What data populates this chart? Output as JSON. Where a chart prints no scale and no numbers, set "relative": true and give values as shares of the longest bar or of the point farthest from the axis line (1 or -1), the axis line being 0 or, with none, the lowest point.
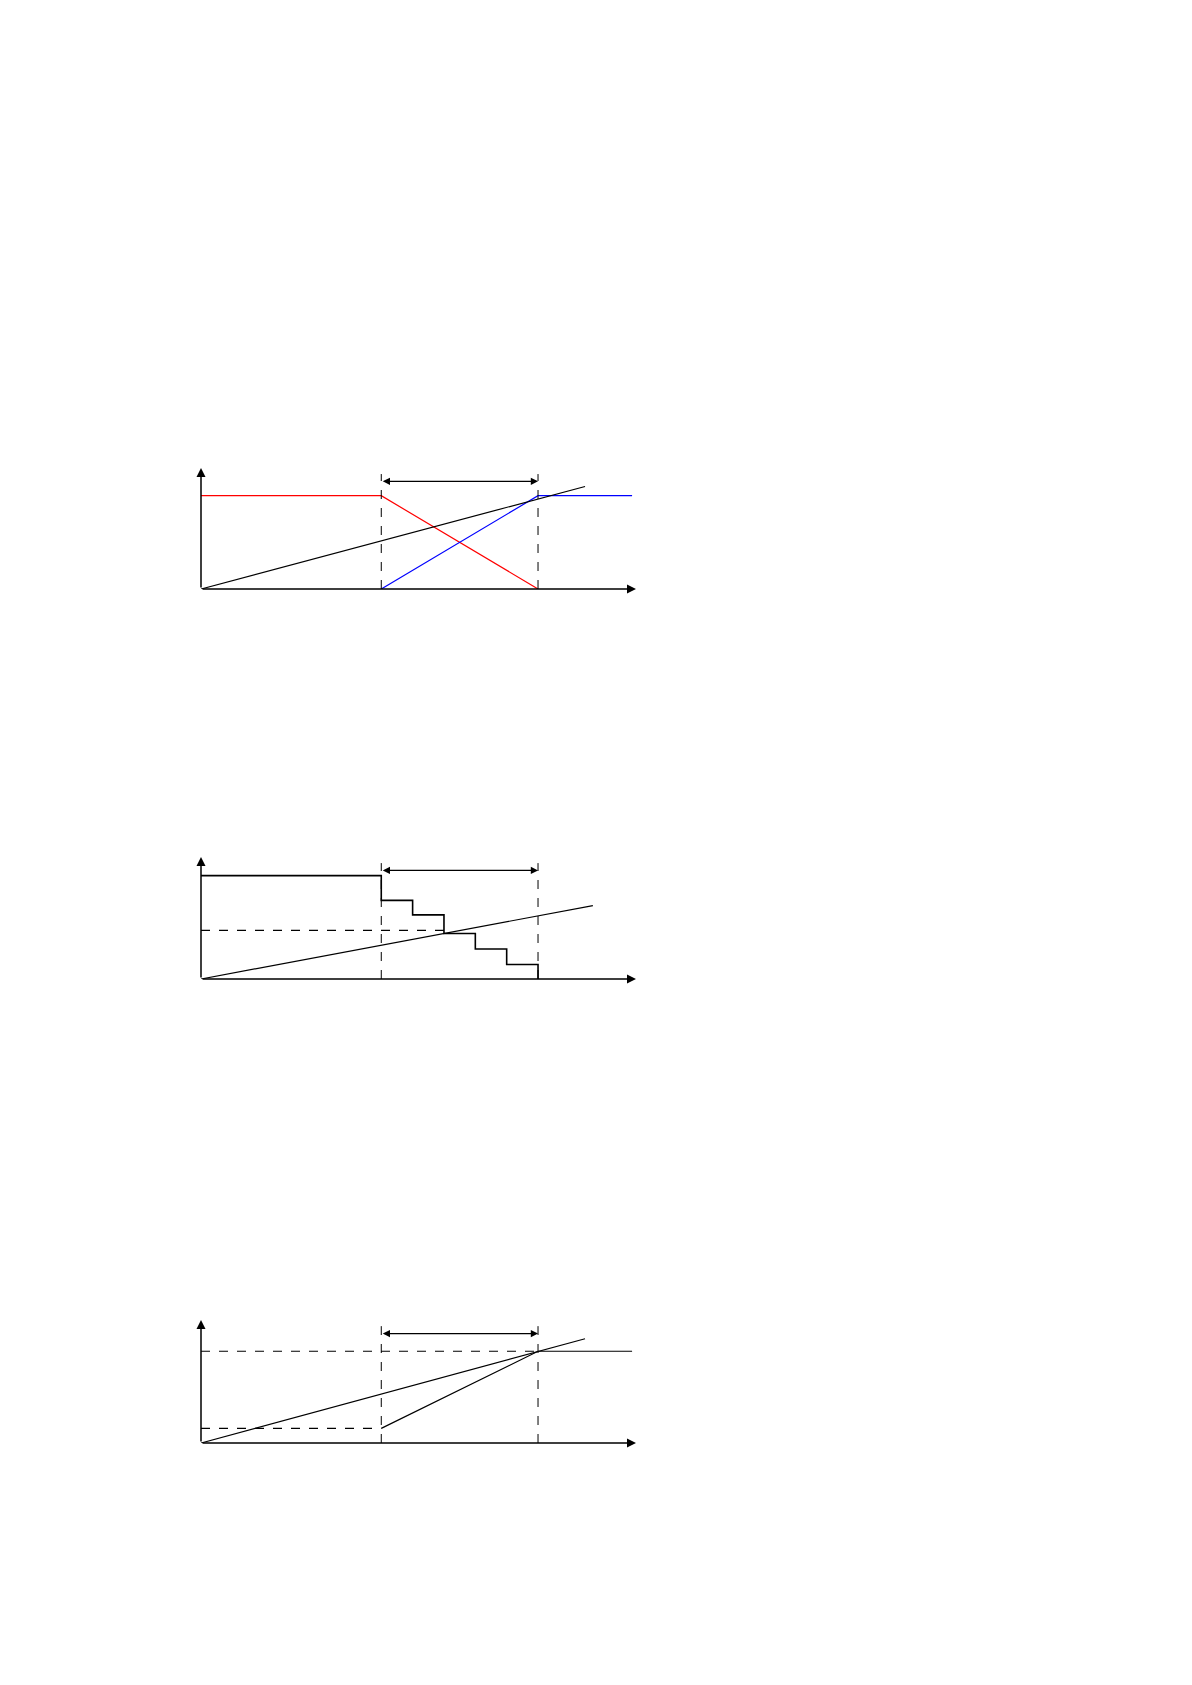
{
  "chart_data": [
    {
      "type": "line",
      "relative": true,
      "categories": [
        null,
        null,
        null,
        null,
        null,
        null,
        null,
        null,
        null,
        null,
        null,
        null,
        null,
        null,
        null,
        null,
        null,
        null,
        null,
        null,
        null,
        null,
        null,
        null,
        null,
        null,
        null,
        null,
        null,
        null,
        null,
        null,
        null,
        null,
        null,
        null,
        null,
        null,
        null,
        null,
        null,
        null,
        null,
        null,
        null,
        null,
        null,
        null,
        null,
        null,
        null,
        null,
        null,
        null,
        null,
        null
      ],
      "series": [
        {
          "color": "#ff0000",
          "values": [
            0.91,
            null,
            null,
            null,
            null,
            null,
            null,
            null,
            null,
            null,
            null,
            null,
            null,
            null,
            null,
            null,
            null,
            null,
            null,
            null,
            null,
            null,
            null,
            0.91,
            null,
            null,
            null,
            null,
            null,
            null,
            null,
            null,
            null,
            null,
            null,
            null,
            null,
            null,
            null,
            null,
            null,
            null,
            null,
            0,
            null,
            null,
            null,
            null,
            null,
            null,
            null,
            null,
            null,
            null,
            null,
            null
          ]
        },
        {
          "color": "#0000ff",
          "values": [
            null,
            null,
            null,
            null,
            null,
            null,
            null,
            null,
            null,
            null,
            null,
            null,
            null,
            null,
            null,
            null,
            null,
            null,
            null,
            null,
            null,
            null,
            null,
            0,
            null,
            null,
            null,
            null,
            null,
            null,
            null,
            null,
            null,
            null,
            null,
            null,
            null,
            null,
            null,
            null,
            null,
            null,
            null,
            0.91,
            null,
            null,
            null,
            null,
            null,
            null,
            null,
            null,
            null,
            null,
            null,
            0.91
          ]
        },
        {
          "color": "#000000",
          "values": [
            0,
            null,
            null,
            null,
            null,
            null,
            null,
            null,
            null,
            null,
            null,
            null,
            null,
            null,
            null,
            null,
            null,
            null,
            null,
            null,
            null,
            null,
            null,
            null,
            null,
            null,
            null,
            null,
            null,
            null,
            null,
            null,
            null,
            null,
            null,
            null,
            null,
            null,
            null,
            null,
            null,
            null,
            null,
            null,
            null,
            null,
            null,
            null,
            null,
            1.0,
            null,
            null,
            null,
            null,
            null,
            null
          ]
        }
      ]
    },
    {
      "type": "line",
      "relative": true,
      "categories": [
        null,
        null,
        null,
        null,
        null,
        null,
        null,
        null,
        null,
        null,
        null,
        null,
        null,
        null,
        null,
        null,
        null,
        null,
        null,
        null,
        null,
        null,
        null,
        null,
        null,
        null,
        null,
        null,
        null,
        null,
        null,
        null,
        null,
        null,
        null,
        null,
        null,
        null,
        null,
        null,
        null,
        null,
        null,
        null,
        null,
        null,
        null,
        null,
        null,
        null,
        null,
        null,
        null,
        null,
        null,
        null
      ],
      "series": [
        {
          "type": "step",
          "color": "#000000",
          "values": [
            1.0,
            null,
            null,
            null,
            null,
            null,
            null,
            null,
            null,
            null,
            null,
            null,
            null,
            null,
            null,
            null,
            null,
            null,
            null,
            null,
            null,
            null,
            null,
            0.76,
            null,
            null,
            null,
            0.62,
            null,
            null,
            null,
            0.44,
            null,
            null,
            null,
            0.29,
            null,
            null,
            null,
            0.14,
            null,
            null,
            null,
            0,
            null,
            null,
            null,
            null,
            null,
            null,
            null,
            null,
            null,
            null,
            null,
            null
          ]
        },
        {
          "color": "#000000",
          "values": [
            0,
            null,
            null,
            null,
            null,
            null,
            null,
            null,
            null,
            null,
            null,
            null,
            null,
            null,
            null,
            null,
            null,
            null,
            null,
            null,
            null,
            null,
            null,
            null,
            null,
            null,
            null,
            null,
            null,
            null,
            null,
            null,
            null,
            null,
            null,
            null,
            null,
            null,
            null,
            null,
            null,
            null,
            null,
            null,
            null,
            null,
            null,
            null,
            null,
            null,
            0.71,
            null,
            null,
            null,
            null,
            null
          ]
        },
        {
          "color": "#000000",
          "line_style": "dashed",
          "values": [
            0.47,
            null,
            null,
            null,
            null,
            null,
            null,
            null,
            null,
            null,
            null,
            null,
            null,
            null,
            null,
            null,
            null,
            null,
            null,
            null,
            null,
            null,
            null,
            null,
            null,
            null,
            null,
            null,
            null,
            null,
            null,
            0.47,
            null,
            null,
            null,
            null,
            null,
            null,
            null,
            null,
            null,
            null,
            null,
            null,
            null,
            null,
            null,
            null,
            null,
            null,
            null,
            null,
            null,
            null,
            null,
            null
          ]
        }
      ]
    },
    {
      "type": "line",
      "relative": true,
      "categories": [
        null,
        null,
        null,
        null,
        null,
        null,
        null,
        null,
        null,
        null,
        null,
        null,
        null,
        null,
        null,
        null,
        null,
        null,
        null,
        null,
        null,
        null,
        null,
        null,
        null,
        null,
        null,
        null,
        null,
        null,
        null,
        null,
        null,
        null,
        null,
        null,
        null,
        null,
        null,
        null,
        null,
        null,
        null,
        null,
        null,
        null,
        null,
        null,
        null,
        null,
        null,
        null,
        null,
        null,
        null,
        null
      ],
      "series": [
        {
          "color": "#000000",
          "values": [
            0,
            null,
            null,
            null,
            null,
            null,
            null,
            null,
            null,
            null,
            null,
            null,
            null,
            null,
            null,
            null,
            null,
            null,
            null,
            null,
            null,
            null,
            null,
            null,
            null,
            null,
            null,
            null,
            null,
            null,
            null,
            null,
            null,
            null,
            null,
            null,
            null,
            null,
            null,
            null,
            null,
            null,
            null,
            null,
            null,
            null,
            null,
            null,
            null,
            1.0,
            null,
            null,
            null,
            null,
            null,
            null
          ]
        },
        {
          "color": "#000000",
          "line_style": "dashed",
          "values": [
            0.14,
            null,
            null,
            null,
            null,
            null,
            null,
            null,
            null,
            null,
            null,
            null,
            null,
            null,
            null,
            null,
            null,
            null,
            null,
            null,
            null,
            null,
            null,
            0.14,
            null,
            null,
            null,
            null,
            null,
            null,
            null,
            null,
            null,
            null,
            null,
            null,
            null,
            null,
            null,
            null,
            null,
            null,
            null,
            null,
            null,
            null,
            null,
            null,
            null,
            null,
            null,
            null,
            null,
            null,
            null,
            null
          ]
        },
        {
          "color": "#000000",
          "line_style": "dashed",
          "values": [
            0.88,
            null,
            null,
            null,
            null,
            null,
            null,
            null,
            null,
            null,
            null,
            null,
            null,
            null,
            null,
            null,
            null,
            null,
            null,
            null,
            null,
            null,
            null,
            null,
            null,
            null,
            null,
            null,
            null,
            null,
            null,
            null,
            null,
            null,
            null,
            null,
            null,
            null,
            null,
            null,
            null,
            null,
            null,
            0.88,
            null,
            null,
            null,
            null,
            null,
            null,
            null,
            null,
            null,
            null,
            null,
            null
          ]
        },
        {
          "color": "#000000",
          "values": [
            null,
            null,
            null,
            null,
            null,
            null,
            null,
            null,
            null,
            null,
            null,
            null,
            null,
            null,
            null,
            null,
            null,
            null,
            null,
            null,
            null,
            null,
            null,
            0.14,
            null,
            null,
            null,
            null,
            null,
            null,
            null,
            null,
            null,
            null,
            null,
            null,
            null,
            null,
            null,
            null,
            null,
            null,
            null,
            0.88,
            null,
            null,
            null,
            null,
            null,
            null,
            null,
            null,
            null,
            null,
            null,
            0.88
          ]
        }
      ]
    }
  ]
}
